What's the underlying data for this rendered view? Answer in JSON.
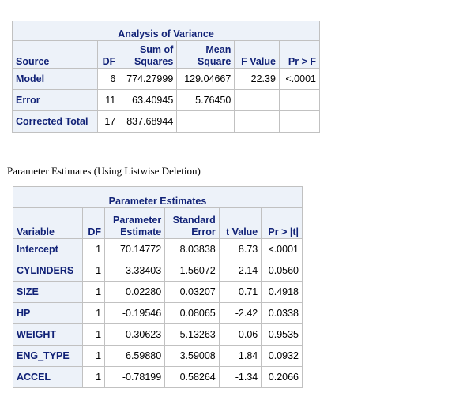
{
  "anova": {
    "title": "Analysis of Variance",
    "headers": {
      "source": "Source",
      "df": "DF",
      "ss_line1": "Sum of",
      "ss_line2": "Squares",
      "ms_line1": "Mean",
      "ms_line2": "Square",
      "fvalue": "F Value",
      "pr": "Pr > F"
    },
    "rows": [
      {
        "source": "Model",
        "df": "6",
        "ss": "774.27999",
        "ms": "129.04667",
        "f": "22.39",
        "p": "<.0001"
      },
      {
        "source": "Error",
        "df": "11",
        "ss": "63.40945",
        "ms": "5.76450",
        "f": "",
        "p": ""
      },
      {
        "source": "Corrected Total",
        "df": "17",
        "ss": "837.68944",
        "ms": "",
        "f": "",
        "p": ""
      }
    ]
  },
  "params_caption": "Parameter Estimates (Using Listwise Deletion)",
  "params": {
    "title": "Parameter Estimates",
    "headers": {
      "variable": "Variable",
      "df": "DF",
      "est_line1": "Parameter",
      "est_line2": "Estimate",
      "se_line1": "Standard",
      "se_line2": "Error",
      "t": "t Value",
      "p": "Pr > |t|"
    },
    "rows": [
      {
        "variable": "Intercept",
        "df": "1",
        "est": "70.14772",
        "se": "8.03838",
        "t": "8.73",
        "p": "<.0001"
      },
      {
        "variable": "CYLINDERS",
        "df": "1",
        "est": "-3.33403",
        "se": "1.56072",
        "t": "-2.14",
        "p": "0.0560"
      },
      {
        "variable": "SIZE",
        "df": "1",
        "est": "0.02280",
        "se": "0.03207",
        "t": "0.71",
        "p": "0.4918"
      },
      {
        "variable": "HP",
        "df": "1",
        "est": "-0.19546",
        "se": "0.08065",
        "t": "-2.42",
        "p": "0.0338"
      },
      {
        "variable": "WEIGHT",
        "df": "1",
        "est": "-0.30623",
        "se": "5.13263",
        "t": "-0.06",
        "p": "0.9535"
      },
      {
        "variable": "ENG_TYPE",
        "df": "1",
        "est": "6.59880",
        "se": "3.59008",
        "t": "1.84",
        "p": "0.0932"
      },
      {
        "variable": "ACCEL",
        "df": "1",
        "est": "-0.78199",
        "se": "0.58264",
        "t": "-1.34",
        "p": "0.2066"
      }
    ]
  },
  "colors": {
    "header_bg": "#edf2f9",
    "header_text": "#112277",
    "border": "#c1c1c1"
  }
}
